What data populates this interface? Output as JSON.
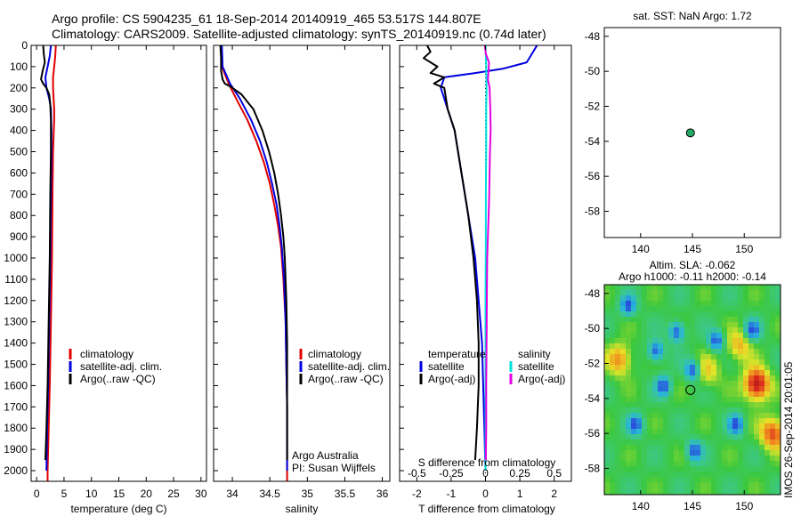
{
  "header": {
    "line1": "Argo profile: CS 5904235_61 18-Sep-2014 20140919_465 53.517S 144.807E",
    "line2": "Climatology: CARS2009. Satellite-adjusted climatology: synTS_20140919.nc (0.74d later)"
  },
  "colors": {
    "climatology": "#e00000",
    "satellite": "#0000e0",
    "argo": "#000000",
    "salinity_satellite": "#00e0e0",
    "salinity_argo": "#e000e0",
    "marker": "#22aa66"
  },
  "chart_data": [
    {
      "type": "line",
      "name": "temperature-profile",
      "xlabel": "temperature (deg C)",
      "ylabel": "",
      "xlim": [
        -1,
        31
      ],
      "ylim": [
        2050,
        0
      ],
      "xticks": [
        0,
        5,
        10,
        15,
        20,
        25,
        30
      ],
      "yticks": [
        0,
        100,
        200,
        300,
        400,
        500,
        600,
        700,
        800,
        900,
        1000,
        1100,
        1200,
        1300,
        1400,
        1500,
        1600,
        1700,
        1800,
        1900,
        2000
      ],
      "ytick_labels": [
        "0",
        "100",
        "200",
        "300",
        "400",
        "500",
        "600",
        "700",
        "800",
        "900",
        "1000",
        "1100",
        "1200",
        "1300",
        "1400",
        "1500",
        "1600",
        "1700",
        "1800",
        "1900",
        "2000"
      ],
      "legend": [
        "climatology",
        "satellite-adj. clim.",
        "Argo(..raw -QC)"
      ],
      "series": [
        {
          "name": "climatology",
          "color": "#e00000",
          "points": [
            [
              3.5,
              0
            ],
            [
              3.4,
              50
            ],
            [
              3.2,
              100
            ],
            [
              3.0,
              150
            ],
            [
              3.0,
              200
            ],
            [
              3.1,
              250
            ],
            [
              3.2,
              300
            ],
            [
              3.2,
              350
            ],
            [
              3.0,
              500
            ],
            [
              2.9,
              700
            ],
            [
              2.8,
              1000
            ],
            [
              2.6,
              1300
            ],
            [
              2.4,
              1600
            ],
            [
              2.2,
              1800
            ],
            [
              2.0,
              2000
            ],
            [
              2.0,
              2050
            ]
          ]
        },
        {
          "name": "satellite-adj. clim.",
          "color": "#0000e0",
          "points": [
            [
              2.6,
              0
            ],
            [
              2.4,
              50
            ],
            [
              2.0,
              100
            ],
            [
              1.6,
              150
            ],
            [
              1.8,
              200
            ],
            [
              2.3,
              250
            ],
            [
              2.6,
              300
            ],
            [
              2.7,
              400
            ],
            [
              2.7,
              500
            ],
            [
              2.6,
              700
            ],
            [
              2.5,
              1000
            ],
            [
              2.3,
              1300
            ],
            [
              2.1,
              1600
            ],
            [
              1.9,
              1800
            ],
            [
              1.8,
              2000
            ]
          ]
        },
        {
          "name": "Argo(..raw -QC)",
          "color": "#000000",
          "points": [
            [
              1.2,
              0
            ],
            [
              1.3,
              40
            ],
            [
              1.5,
              80
            ],
            [
              1.1,
              120
            ],
            [
              0.8,
              160
            ],
            [
              1.2,
              180
            ],
            [
              1.8,
              200
            ],
            [
              2.3,
              230
            ],
            [
              2.5,
              280
            ],
            [
              2.6,
              350
            ],
            [
              2.6,
              500
            ],
            [
              2.5,
              700
            ],
            [
              2.4,
              1000
            ],
            [
              2.2,
              1300
            ],
            [
              2.0,
              1600
            ],
            [
              1.8,
              1800
            ],
            [
              1.6,
              1950
            ]
          ]
        }
      ]
    },
    {
      "type": "line",
      "name": "salinity-profile",
      "xlabel": "salinity",
      "xlim": [
        33.75,
        36.1
      ],
      "ylim": [
        2050,
        0
      ],
      "xticks": [
        34,
        34.5,
        35,
        35.5,
        36
      ],
      "xtick_labels": [
        "34",
        "34.5",
        "35",
        "35.5",
        "36"
      ],
      "legend": [
        "climatology",
        "satellite-adj. clim.",
        "Argo(..raw -QC)"
      ],
      "annotation": [
        "Argo Australia",
        "PI: Susan Wijffels"
      ],
      "series": [
        {
          "name": "climatology",
          "color": "#e00000",
          "points": [
            [
              33.85,
              0
            ],
            [
              33.86,
              100
            ],
            [
              33.95,
              180
            ],
            [
              34.05,
              250
            ],
            [
              34.2,
              350
            ],
            [
              34.32,
              450
            ],
            [
              34.42,
              550
            ],
            [
              34.5,
              650
            ],
            [
              34.56,
              750
            ],
            [
              34.61,
              850
            ],
            [
              34.65,
              950
            ],
            [
              34.68,
              1100
            ],
            [
              34.71,
              1300
            ],
            [
              34.72,
              1500
            ],
            [
              34.73,
              1700
            ],
            [
              34.73,
              1900
            ],
            [
              34.73,
              2050
            ]
          ]
        },
        {
          "name": "satellite-adj. clim.",
          "color": "#0000e0",
          "points": [
            [
              33.86,
              0
            ],
            [
              33.87,
              100
            ],
            [
              33.97,
              180
            ],
            [
              34.1,
              250
            ],
            [
              34.25,
              350
            ],
            [
              34.37,
              450
            ],
            [
              34.46,
              550
            ],
            [
              34.53,
              650
            ],
            [
              34.59,
              750
            ],
            [
              34.63,
              850
            ],
            [
              34.66,
              950
            ],
            [
              34.69,
              1100
            ],
            [
              34.71,
              1300
            ],
            [
              34.72,
              1500
            ],
            [
              34.73,
              1700
            ],
            [
              34.73,
              1900
            ],
            [
              34.73,
              2000
            ]
          ]
        },
        {
          "name": "Argo(..raw -QC)",
          "color": "#000000",
          "points": [
            [
              33.84,
              0
            ],
            [
              33.85,
              60
            ],
            [
              33.85,
              120
            ],
            [
              33.87,
              160
            ],
            [
              33.9,
              180
            ],
            [
              33.98,
              195
            ],
            [
              34.12,
              230
            ],
            [
              34.28,
              300
            ],
            [
              34.4,
              400
            ],
            [
              34.49,
              500
            ],
            [
              34.56,
              600
            ],
            [
              34.61,
              700
            ],
            [
              34.65,
              800
            ],
            [
              34.68,
              900
            ],
            [
              34.7,
              1000
            ],
            [
              34.72,
              1200
            ],
            [
              34.73,
              1400
            ],
            [
              34.73,
              1600
            ],
            [
              34.73,
              1800
            ],
            [
              34.73,
              1950
            ]
          ]
        }
      ]
    },
    {
      "type": "line",
      "name": "difference-profile",
      "xlabel": "T difference from climatology",
      "x2label": "S difference from climatology",
      "xlim": [
        -2.5,
        2.5
      ],
      "ylim": [
        2050,
        0
      ],
      "xticks": [
        -2,
        -1,
        0,
        1,
        2
      ],
      "xtick_labels": [
        "-2",
        "-1",
        "0",
        "1",
        "2"
      ],
      "x2ticks": [
        -0.5,
        -0.25,
        0,
        0.25,
        0.5
      ],
      "x2tick_labels": [
        "-0.5",
        "-0.25",
        "0",
        "0.25",
        "0.5"
      ],
      "legend_temperature": {
        "title": "temperature",
        "items": [
          "satellite",
          "Argo(-adj)"
        ]
      },
      "legend_salinity": {
        "title": "salinity",
        "items": [
          "satellite",
          "Argo(-adj)"
        ]
      },
      "series": [
        {
          "name": "temperature satellite",
          "color": "#0000e0",
          "points": [
            [
              1.5,
              0
            ],
            [
              1.2,
              80
            ],
            [
              0.5,
              110
            ],
            [
              -0.3,
              130
            ],
            [
              -1.2,
              150
            ],
            [
              -1.3,
              200
            ],
            [
              -1.1,
              300
            ],
            [
              -0.9,
              400
            ],
            [
              -0.7,
              600
            ],
            [
              -0.5,
              800
            ],
            [
              -0.3,
              1000
            ],
            [
              -0.2,
              1200
            ],
            [
              -0.1,
              1400
            ],
            [
              -0.05,
              1700
            ],
            [
              0,
              2000
            ]
          ]
        },
        {
          "name": "temperature Argo(-adj)",
          "color": "#000000",
          "points": [
            [
              -1.7,
              0
            ],
            [
              -1.6,
              30
            ],
            [
              -1.8,
              60
            ],
            [
              -1.4,
              100
            ],
            [
              -1.6,
              130
            ],
            [
              -1.2,
              150
            ],
            [
              -1.5,
              180
            ],
            [
              -1.2,
              200
            ],
            [
              -1.1,
              300
            ],
            [
              -0.9,
              400
            ],
            [
              -0.7,
              600
            ],
            [
              -0.5,
              800
            ],
            [
              -0.35,
              1000
            ],
            [
              -0.25,
              1200
            ],
            [
              -0.2,
              1400
            ],
            [
              -0.2,
              1600
            ],
            [
              -0.25,
              1800
            ],
            [
              -0.3,
              1950
            ]
          ]
        },
        {
          "name": "salinity satellite",
          "color": "#00e0e0",
          "points": [
            [
              0.0,
              0
            ],
            [
              0.02,
              100
            ],
            [
              0.03,
              200
            ],
            [
              0.02,
              300
            ],
            [
              0.02,
              500
            ],
            [
              0.01,
              700
            ],
            [
              0.01,
              900
            ],
            [
              0.0,
              1200
            ],
            [
              0.0,
              1500
            ],
            [
              0.0,
              1800
            ],
            [
              0.0,
              2000
            ]
          ]
        },
        {
          "name": "salinity Argo(-adj)",
          "color": "#e000e0",
          "points": [
            [
              -0.02,
              0
            ],
            [
              0.01,
              40
            ],
            [
              0.1,
              80
            ],
            [
              0.09,
              120
            ],
            [
              0.07,
              160
            ],
            [
              0.12,
              200
            ],
            [
              0.14,
              300
            ],
            [
              0.15,
              400
            ],
            [
              0.13,
              500
            ],
            [
              0.12,
              600
            ],
            [
              0.11,
              700
            ],
            [
              0.09,
              800
            ],
            [
              0.07,
              900
            ],
            [
              0.05,
              1000
            ],
            [
              0.04,
              1200
            ],
            [
              0.03,
              1400
            ],
            [
              0.02,
              1600
            ],
            [
              0.02,
              1800
            ],
            [
              0.01,
              1950
            ]
          ]
        }
      ]
    },
    {
      "type": "scatter",
      "name": "location-sst",
      "title": "sat. SST: NaN Argo: 1.72",
      "xlim": [
        136.5,
        153.5
      ],
      "ylim": [
        -59.5,
        -47.5
      ],
      "xticks": [
        140,
        145,
        150
      ],
      "yticks": [
        -48,
        -50,
        -52,
        -54,
        -56,
        -58
      ],
      "points": [
        {
          "x": 144.807,
          "y": -53.517
        }
      ]
    },
    {
      "type": "heatmap",
      "name": "sea-level-anomaly",
      "title_line1": "Altim. SLA: -0.062",
      "title_line2": "Argo h1000: -0.11 h2000: -0.14",
      "xlim": [
        136.5,
        153.5
      ],
      "ylim": [
        -59.5,
        -47.5
      ],
      "xticks": [
        140,
        145,
        150
      ],
      "yticks": [
        -48,
        -50,
        -52,
        -54,
        -56,
        -58
      ],
      "point": {
        "x": 144.807,
        "y": -53.517
      },
      "highs": [
        {
          "x": 151.2,
          "y": -53.2,
          "strength": 1.0
        },
        {
          "x": 138.0,
          "y": -51.8,
          "strength": 0.55
        },
        {
          "x": 152.8,
          "y": -56.0,
          "strength": 0.75
        },
        {
          "x": 149.5,
          "y": -51.0,
          "strength": 0.45
        },
        {
          "x": 146.5,
          "y": -52.5,
          "strength": 0.35
        }
      ],
      "lows": [
        {
          "x": 141.5,
          "y": -51.3
        },
        {
          "x": 145.0,
          "y": -52.4
        },
        {
          "x": 147.3,
          "y": -50.7
        },
        {
          "x": 150.8,
          "y": -50.1
        },
        {
          "x": 143.5,
          "y": -50.2
        },
        {
          "x": 138.8,
          "y": -48.7
        },
        {
          "x": 142.2,
          "y": -53.3
        },
        {
          "x": 145.2,
          "y": -57.0
        },
        {
          "x": 139.5,
          "y": -55.5
        },
        {
          "x": 149.2,
          "y": -55.5
        }
      ]
    }
  ],
  "side_label": "IMOS 26-Sep-2014 20:01:05"
}
